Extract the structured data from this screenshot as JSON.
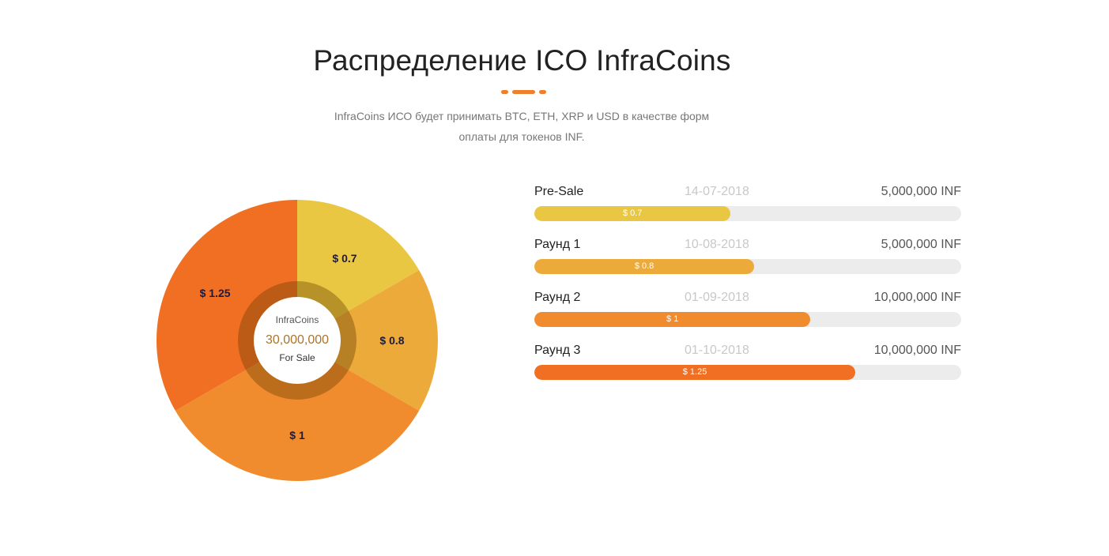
{
  "header": {
    "title": "Распределение ICO InfraCoins",
    "subtitle_line1": "InfraCoins ИСО будет принимать BTC, ETH, XRP и USD в качестве форм",
    "subtitle_line2": "оплаты для токенов INF."
  },
  "colors": {
    "accent": "#ee7f2d",
    "track": "#ececec"
  },
  "chart_data": {
    "type": "pie",
    "center": {
      "name": "InfraCoins",
      "amount": "30,000,000",
      "caption": "For Sale"
    },
    "slices": [
      {
        "label": "$ 0.7",
        "value": 5000000,
        "color": "#eac743"
      },
      {
        "label": "$ 0.8",
        "value": 5000000,
        "color": "#ecaa3a"
      },
      {
        "label": "$ 1",
        "value": 10000000,
        "color": "#f08c2e"
      },
      {
        "label": "$ 1.25",
        "value": 10000000,
        "color": "#f06f22"
      }
    ]
  },
  "rounds": [
    {
      "name": "Pre-Sale",
      "date": "14-07-2018",
      "amount": "5,000,000 INF",
      "price": "$ 0.7",
      "progress": 0.46,
      "color": "#eac743"
    },
    {
      "name": "Раунд 1",
      "date": "10-08-2018",
      "amount": "5,000,000 INF",
      "price": "$ 0.8",
      "progress": 0.515,
      "color": "#ecaa3a"
    },
    {
      "name": "Раунд 2",
      "date": "01-09-2018",
      "amount": "10,000,000 INF",
      "price": "$ 1",
      "progress": 0.647,
      "color": "#f08c2e"
    },
    {
      "name": "Раунд 3",
      "date": "01-10-2018",
      "amount": "10,000,000 INF",
      "price": "$ 1.25",
      "progress": 0.752,
      "color": "#f06f22"
    }
  ]
}
